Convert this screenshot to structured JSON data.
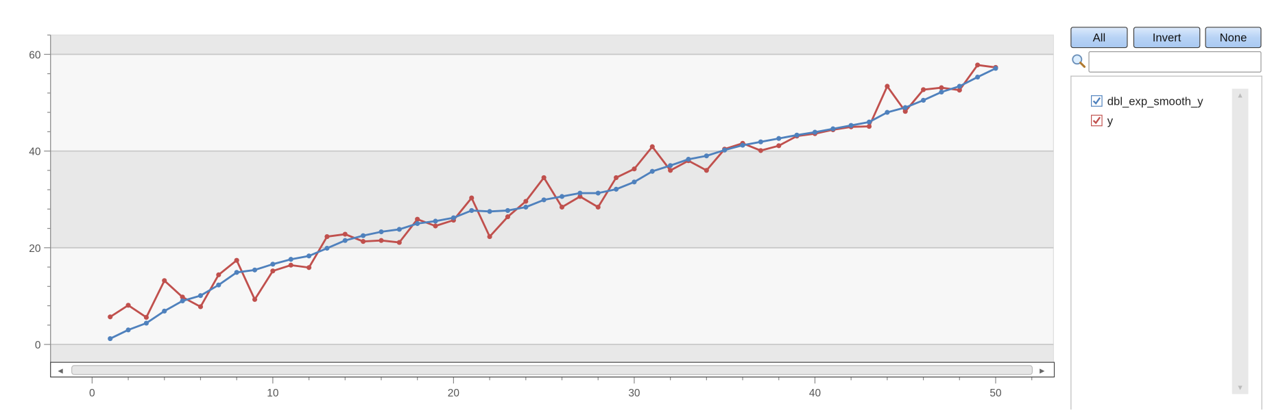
{
  "chart_data": {
    "type": "line",
    "title": "",
    "xlabel": "",
    "ylabel": "",
    "xlim": [
      -2.3,
      53.2
    ],
    "ylim": [
      -3.7,
      64
    ],
    "xticks": [
      0,
      10,
      20,
      30,
      40,
      50
    ],
    "yticks": [
      0,
      20,
      40,
      60
    ],
    "grid": true,
    "x": [
      1,
      2,
      3,
      4,
      5,
      6,
      7,
      8,
      9,
      10,
      11,
      12,
      13,
      14,
      15,
      16,
      17,
      18,
      19,
      20,
      21,
      22,
      23,
      24,
      25,
      26,
      27,
      28,
      29,
      30,
      31,
      32,
      33,
      34,
      35,
      36,
      37,
      38,
      39,
      40,
      41,
      42,
      43,
      44,
      45,
      46,
      47,
      48,
      49,
      50
    ],
    "series": [
      {
        "name": "dbl_exp_smooth_y",
        "color": "#4f81bd",
        "values": [
          1.2,
          3.0,
          4.4,
          6.9,
          9.0,
          10.1,
          12.3,
          14.9,
          15.4,
          16.6,
          17.6,
          18.3,
          19.9,
          21.5,
          22.5,
          23.3,
          23.8,
          25.0,
          25.5,
          26.2,
          27.7,
          27.5,
          27.7,
          28.4,
          29.9,
          30.6,
          31.3,
          31.3,
          32.1,
          33.6,
          35.8,
          37.0,
          38.3,
          39.0,
          40.2,
          41.2,
          41.9,
          42.6,
          43.3,
          43.9,
          44.6,
          45.3,
          46.0,
          48.0,
          49.0,
          50.5,
          52.2,
          53.4,
          55.3,
          57.1
        ]
      },
      {
        "name": "y",
        "color": "#c0504d",
        "values": [
          5.7,
          8.1,
          5.6,
          13.2,
          9.8,
          7.8,
          14.4,
          17.4,
          9.3,
          15.2,
          16.4,
          15.9,
          22.3,
          22.8,
          21.3,
          21.5,
          21.1,
          25.9,
          24.5,
          25.7,
          30.3,
          22.3,
          26.4,
          29.6,
          34.5,
          28.4,
          30.6,
          28.4,
          34.5,
          36.3,
          40.9,
          36.0,
          38.0,
          36.0,
          40.4,
          41.6,
          40.1,
          41.1,
          43.1,
          43.6,
          44.4,
          45.0,
          45.1,
          53.4,
          48.2,
          52.7,
          53.1,
          52.6,
          57.8,
          57.3
        ]
      }
    ]
  },
  "panel": {
    "all_label": "All",
    "invert_label": "Invert",
    "none_label": "None",
    "search_value": "",
    "search_icon": "magnifier-icon",
    "legend_items": [
      {
        "label": "dbl_exp_smooth_y",
        "checked": true,
        "color": "#4f81bd"
      },
      {
        "label": "y",
        "checked": true,
        "color": "#c0504d"
      }
    ]
  }
}
